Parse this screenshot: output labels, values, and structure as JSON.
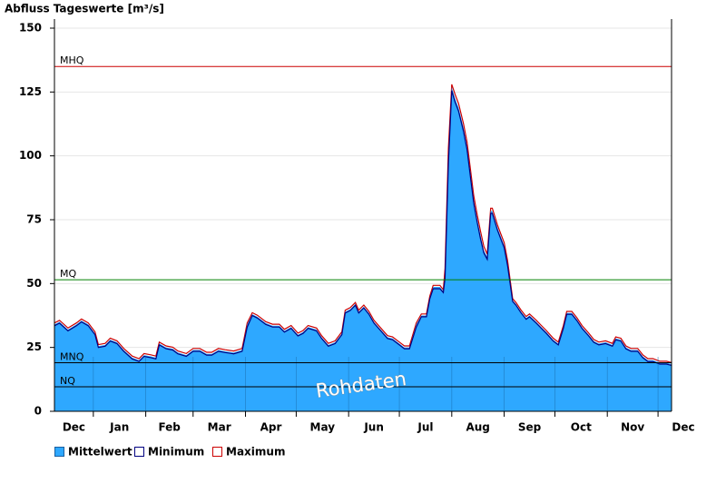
{
  "chart_data": {
    "type": "area",
    "title": "Abfluss Tageswerte [m³/s]",
    "watermark": "Rohdaten",
    "xlim": [
      0,
      365
    ],
    "xticks": [
      -8,
      23,
      54,
      82,
      113,
      143,
      174,
      204,
      235,
      266,
      296,
      327,
      357
    ],
    "month_labels": [
      "Dec",
      "Jan",
      "Feb",
      "Mar",
      "Apr",
      "May",
      "Jun",
      "Jul",
      "Aug",
      "Sep",
      "Oct",
      "Nov",
      "Dec"
    ],
    "ylim": [
      0,
      150
    ],
    "yticks": [
      0,
      25,
      50,
      75,
      100,
      125,
      150
    ],
    "grid": true,
    "reference_lines": [
      {
        "label": "MHQ",
        "value": 135,
        "color": "#cc0000"
      },
      {
        "label": "MQ",
        "value": 51.5,
        "color": "#008000"
      },
      {
        "label": "MNQ",
        "value": 19,
        "color": "#000000"
      },
      {
        "label": "NQ",
        "value": 9.6,
        "color": "#000000"
      }
    ],
    "x": [
      0,
      3,
      8,
      13,
      16,
      20,
      24,
      26,
      30,
      33,
      37,
      41,
      46,
      50,
      53,
      57,
      60,
      62,
      66,
      70,
      73,
      78,
      82,
      86,
      90,
      93,
      97,
      101,
      106,
      111,
      114,
      117,
      120,
      125,
      129,
      133,
      136,
      140,
      144,
      147,
      150,
      155,
      158,
      162,
      166,
      170,
      172,
      175,
      178,
      180,
      183,
      186,
      189,
      193,
      197,
      200,
      204,
      207,
      210,
      214,
      217,
      220,
      222,
      224,
      228,
      230,
      231,
      233,
      235,
      237,
      239,
      242,
      244,
      246,
      248,
      250,
      252,
      254,
      256,
      258,
      259,
      262,
      264,
      266,
      268,
      271,
      273,
      276,
      279,
      281,
      285,
      288,
      291,
      295,
      298,
      301,
      303,
      306,
      309,
      312,
      316,
      319,
      322,
      326,
      330,
      332,
      335,
      338,
      341,
      345,
      348,
      351,
      354,
      358,
      362,
      365
    ],
    "series": [
      {
        "name": "Mittelwert",
        "color": "#2ea8ff",
        "values": [
          34,
          35,
          32,
          34,
          35.5,
          34,
          30.5,
          25.5,
          26,
          28,
          27,
          24,
          21,
          20,
          22,
          21.5,
          21,
          26.5,
          25,
          24.5,
          23,
          22,
          24,
          24,
          22.5,
          22.5,
          24,
          23.5,
          23,
          24,
          34,
          38,
          37,
          34.5,
          33.5,
          33.5,
          31.5,
          33,
          30,
          31,
          33,
          32,
          29,
          26,
          27,
          30.5,
          39,
          40,
          42,
          39,
          41,
          38.5,
          35,
          32,
          29,
          28.5,
          26.5,
          25,
          25,
          34,
          37.5,
          37.5,
          44.5,
          48.7,
          48.7,
          47,
          54,
          100,
          127,
          122.5,
          119,
          111,
          104,
          93.5,
          83,
          75.5,
          69,
          63,
          60.5,
          78.5,
          78.5,
          72,
          68.5,
          65,
          58,
          43.5,
          42,
          39,
          36.5,
          37.5,
          35,
          33,
          31,
          28,
          26.5,
          33,
          38.5,
          38.5,
          36,
          33,
          30,
          27.5,
          26.5,
          27,
          26,
          28.5,
          28,
          25,
          24,
          24,
          21.5,
          20,
          20,
          19,
          19,
          18.5
        ]
      },
      {
        "name": "Minimum",
        "color": "#000080",
        "values": [
          33.5,
          34.5,
          31.5,
          33.5,
          35,
          33.5,
          30,
          25,
          25.5,
          27.5,
          26.5,
          23.5,
          20.5,
          19.5,
          21.5,
          21,
          20.5,
          26,
          24.5,
          24,
          22.5,
          21.5,
          23.5,
          23.5,
          22,
          22,
          23.5,
          23,
          22.5,
          23.5,
          33,
          37.5,
          36.5,
          34,
          33,
          33,
          31,
          32.5,
          29.5,
          30.5,
          32.5,
          31.5,
          28.5,
          25.5,
          26.5,
          30,
          38.5,
          39.5,
          41.5,
          38.5,
          40.5,
          38,
          34.5,
          31.5,
          28.5,
          28,
          26,
          24.5,
          24.5,
          33,
          37,
          37,
          44,
          48,
          48,
          46.5,
          52,
          97,
          125.5,
          121,
          117.5,
          109.5,
          102.5,
          92,
          81.5,
          74,
          67.5,
          62,
          59.5,
          77.5,
          77.5,
          71,
          67.5,
          64,
          57,
          43,
          41.5,
          38.5,
          36,
          37,
          34.5,
          32.5,
          30.5,
          27.5,
          26,
          32.5,
          38,
          38,
          35.5,
          32.5,
          29.5,
          27,
          26,
          26.5,
          25.5,
          28,
          27.5,
          24.5,
          23.5,
          23.5,
          21,
          19.5,
          19.5,
          18.5,
          18.5,
          18
        ]
      },
      {
        "name": "Maximum",
        "color": "#cc0000",
        "values": [
          34.6,
          35.6,
          32.6,
          34.6,
          36.1,
          34.6,
          31.1,
          26.1,
          26.6,
          28.6,
          27.6,
          24.6,
          21.6,
          20.6,
          22.6,
          22.1,
          21.6,
          27.1,
          25.6,
          25.1,
          23.6,
          22.6,
          24.6,
          24.6,
          23.1,
          23.1,
          24.6,
          24.1,
          23.6,
          24.6,
          34.6,
          38.6,
          37.6,
          35.1,
          34.1,
          34.1,
          32.1,
          33.6,
          30.6,
          31.6,
          33.6,
          32.6,
          29.6,
          26.6,
          27.6,
          31.1,
          39.6,
          40.6,
          42.6,
          39.6,
          41.6,
          39.1,
          35.6,
          32.6,
          29.6,
          29.1,
          27.1,
          25.6,
          25.6,
          34.6,
          38.1,
          38.1,
          45.1,
          49.3,
          49.3,
          47.6,
          56,
          103,
          128,
          124,
          120.5,
          112.5,
          105.5,
          95,
          84.5,
          77,
          70.5,
          64.5,
          61.5,
          79.5,
          79.5,
          73,
          69.5,
          66,
          59,
          44.1,
          42.6,
          39.6,
          37.1,
          38.1,
          35.6,
          33.6,
          31.6,
          28.6,
          27.1,
          33.6,
          39.1,
          39.1,
          36.6,
          33.6,
          30.6,
          28.1,
          27.1,
          27.6,
          26.6,
          29.1,
          28.6,
          25.6,
          24.6,
          24.6,
          22.1,
          20.6,
          20.6,
          19.6,
          19.6,
          19.1
        ]
      }
    ]
  }
}
